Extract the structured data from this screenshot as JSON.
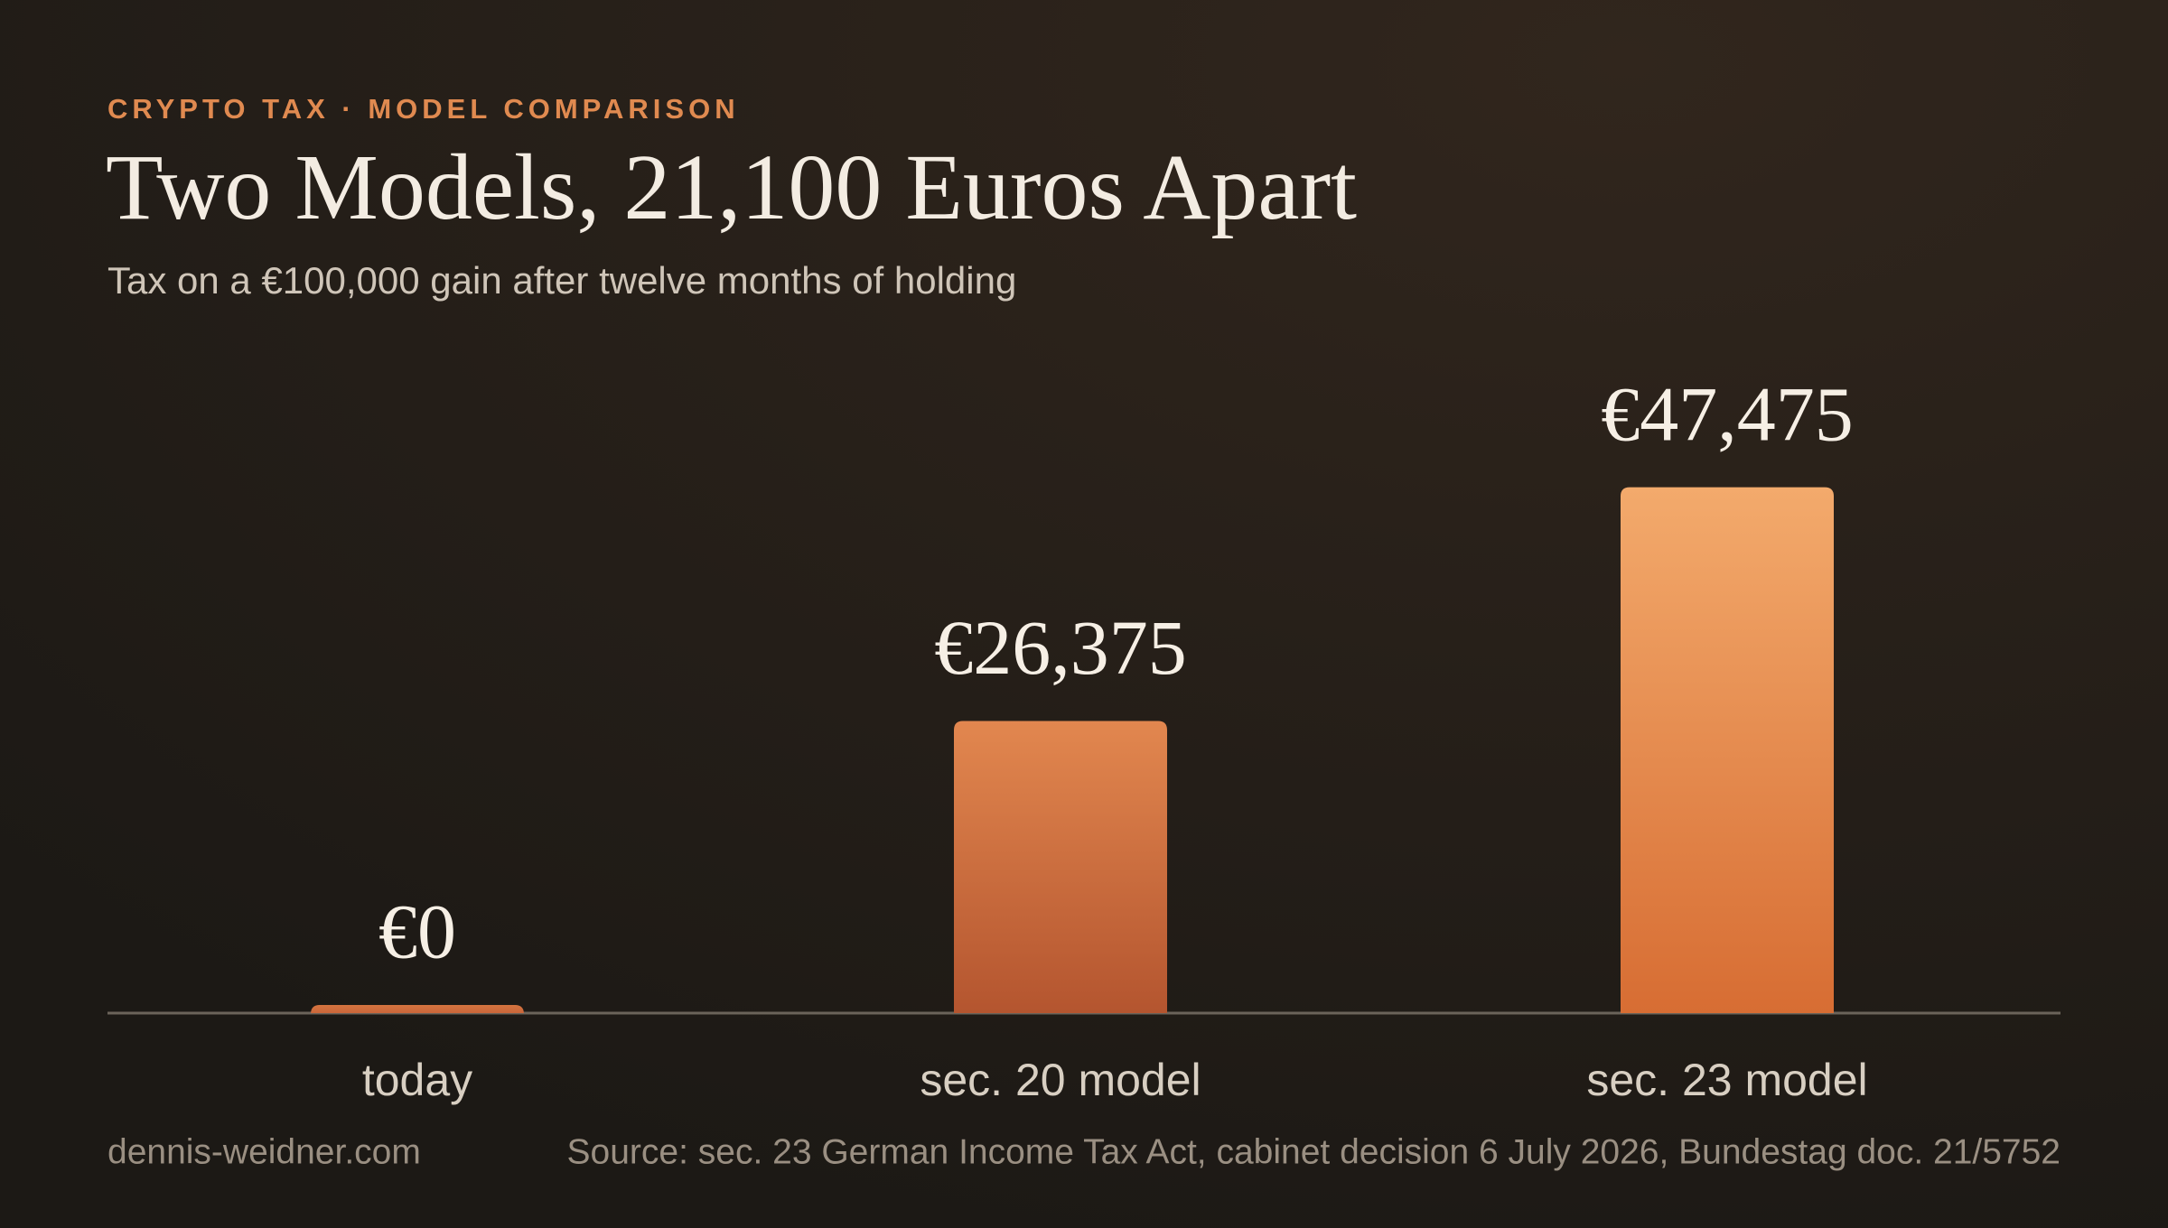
{
  "chart_data": {
    "type": "bar",
    "eyebrow": "CRYPTO TAX · MODEL COMPARISON",
    "title": "Two Models, 21,100 Euros Apart",
    "subtitle": "Tax on a €100,000 gain after twelve months of holding",
    "categories": [
      "today",
      "sec. 20 model",
      "sec. 23 model"
    ],
    "values": [
      0,
      26375,
      47475
    ],
    "value_labels": [
      "€0",
      "€26,375",
      "€47,475"
    ],
    "colors": [
      [
        "#d4743f",
        "#c9653a"
      ],
      [
        "#e2874f",
        "#b4552f"
      ],
      [
        "#f3aa6c",
        "#d76d33"
      ]
    ],
    "ylim": [
      0,
      60000
    ],
    "site": "dennis-weidner.com",
    "source": "Source: sec. 23 German Income Tax Act, cabinet decision 6 July 2026, Bundestag doc. 21/5752"
  }
}
